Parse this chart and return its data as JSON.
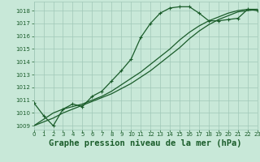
{
  "bg_color": "#c8e8d8",
  "grid_color": "#a0c8b8",
  "line_color": "#1a5c2a",
  "xlabel": "Graphe pression niveau de la mer (hPa)",
  "xlabel_fontsize": 7.5,
  "ylabel_ticks": [
    1009,
    1010,
    1011,
    1012,
    1013,
    1014,
    1015,
    1016,
    1017,
    1018
  ],
  "xlim": [
    0,
    23
  ],
  "ylim": [
    1008.7,
    1018.7
  ],
  "xticks": [
    0,
    1,
    2,
    3,
    4,
    5,
    6,
    7,
    8,
    9,
    10,
    11,
    12,
    13,
    14,
    15,
    16,
    17,
    18,
    19,
    20,
    21,
    22,
    23
  ],
  "series1": [
    1010.8,
    1009.8,
    1009.0,
    1010.3,
    1010.7,
    1010.5,
    1011.3,
    1011.7,
    1012.5,
    1013.3,
    1014.2,
    1015.9,
    1017.0,
    1017.8,
    1018.2,
    1018.3,
    1018.3,
    1017.8,
    1017.2,
    1017.2,
    1017.3,
    1017.4,
    1018.1,
    1018.0
  ],
  "series2": [
    1009.0,
    1009.5,
    1010.0,
    1010.3,
    1010.5,
    1010.7,
    1011.0,
    1011.3,
    1011.7,
    1012.2,
    1012.7,
    1013.2,
    1013.8,
    1014.4,
    1015.0,
    1015.7,
    1016.3,
    1016.8,
    1017.2,
    1017.5,
    1017.8,
    1018.0,
    1018.1,
    1018.1
  ],
  "series3": [
    1009.0,
    1009.3,
    1009.6,
    1010.0,
    1010.3,
    1010.6,
    1010.9,
    1011.2,
    1011.5,
    1011.9,
    1012.3,
    1012.8,
    1013.3,
    1013.9,
    1014.5,
    1015.1,
    1015.8,
    1016.4,
    1016.9,
    1017.3,
    1017.6,
    1017.9,
    1018.0,
    1018.1
  ]
}
